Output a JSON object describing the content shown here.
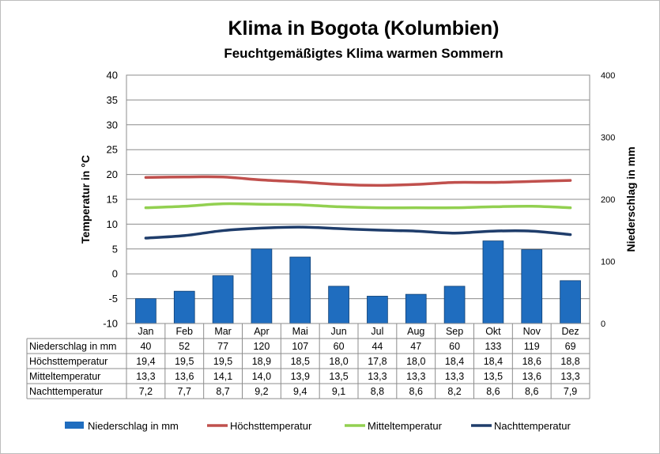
{
  "chart_data": {
    "type": "bar+line",
    "title": "Klima in Bogota (Kolumbien)",
    "subtitle": "Feuchtgemäßigtes Klima warmen Sommern",
    "categories": [
      "Jan",
      "Feb",
      "Mar",
      "Apr",
      "Mai",
      "Jun",
      "Jul",
      "Aug",
      "Sep",
      "Okt",
      "Nov",
      "Dez"
    ],
    "ylabel": "Temperatur in °C",
    "ylabel_right": "Niederschlag in mm",
    "ylim": [
      -10,
      40
    ],
    "yticks": [
      -10,
      -5,
      0,
      5,
      10,
      15,
      20,
      25,
      30,
      35,
      40
    ],
    "ylim_right": [
      0,
      400
    ],
    "yticks_right": [
      0,
      100,
      200,
      300,
      400
    ],
    "grid": true,
    "legend_position": "bottom",
    "series": [
      {
        "name": "Niederschlag in mm",
        "kind": "bar",
        "axis": "right",
        "color": "#1f6dbf",
        "values": [
          40,
          52,
          77,
          120,
          107,
          60,
          44,
          47,
          60,
          133,
          119,
          69
        ],
        "display": [
          "40",
          "52",
          "77",
          "120",
          "107",
          "60",
          "44",
          "47",
          "60",
          "133",
          "119",
          "69"
        ]
      },
      {
        "name": "Höchsttemperatur",
        "kind": "line",
        "axis": "left",
        "color": "#c0504d",
        "values": [
          19.4,
          19.5,
          19.5,
          18.9,
          18.5,
          18.0,
          17.8,
          18.0,
          18.4,
          18.4,
          18.6,
          18.8
        ],
        "display": [
          "19,4",
          "19,5",
          "19,5",
          "18,9",
          "18,5",
          "18,0",
          "17,8",
          "18,0",
          "18,4",
          "18,4",
          "18,6",
          "18,8"
        ]
      },
      {
        "name": "Mitteltemperatur",
        "kind": "line",
        "axis": "left",
        "color": "#92d050",
        "values": [
          13.3,
          13.6,
          14.1,
          14.0,
          13.9,
          13.5,
          13.3,
          13.3,
          13.3,
          13.5,
          13.6,
          13.3
        ],
        "display": [
          "13,3",
          "13,6",
          "14,1",
          "14,0",
          "13,9",
          "13,5",
          "13,3",
          "13,3",
          "13,3",
          "13,5",
          "13,6",
          "13,3"
        ]
      },
      {
        "name": "Nachttemperatur",
        "kind": "line",
        "axis": "left",
        "color": "#1f3d6b",
        "values": [
          7.2,
          7.7,
          8.7,
          9.2,
          9.4,
          9.1,
          8.8,
          8.6,
          8.2,
          8.6,
          8.6,
          7.9
        ],
        "display": [
          "7,2",
          "7,7",
          "8,7",
          "9,2",
          "9,4",
          "9,1",
          "8,8",
          "8,6",
          "8,2",
          "8,6",
          "8,6",
          "7,9"
        ]
      }
    ]
  }
}
